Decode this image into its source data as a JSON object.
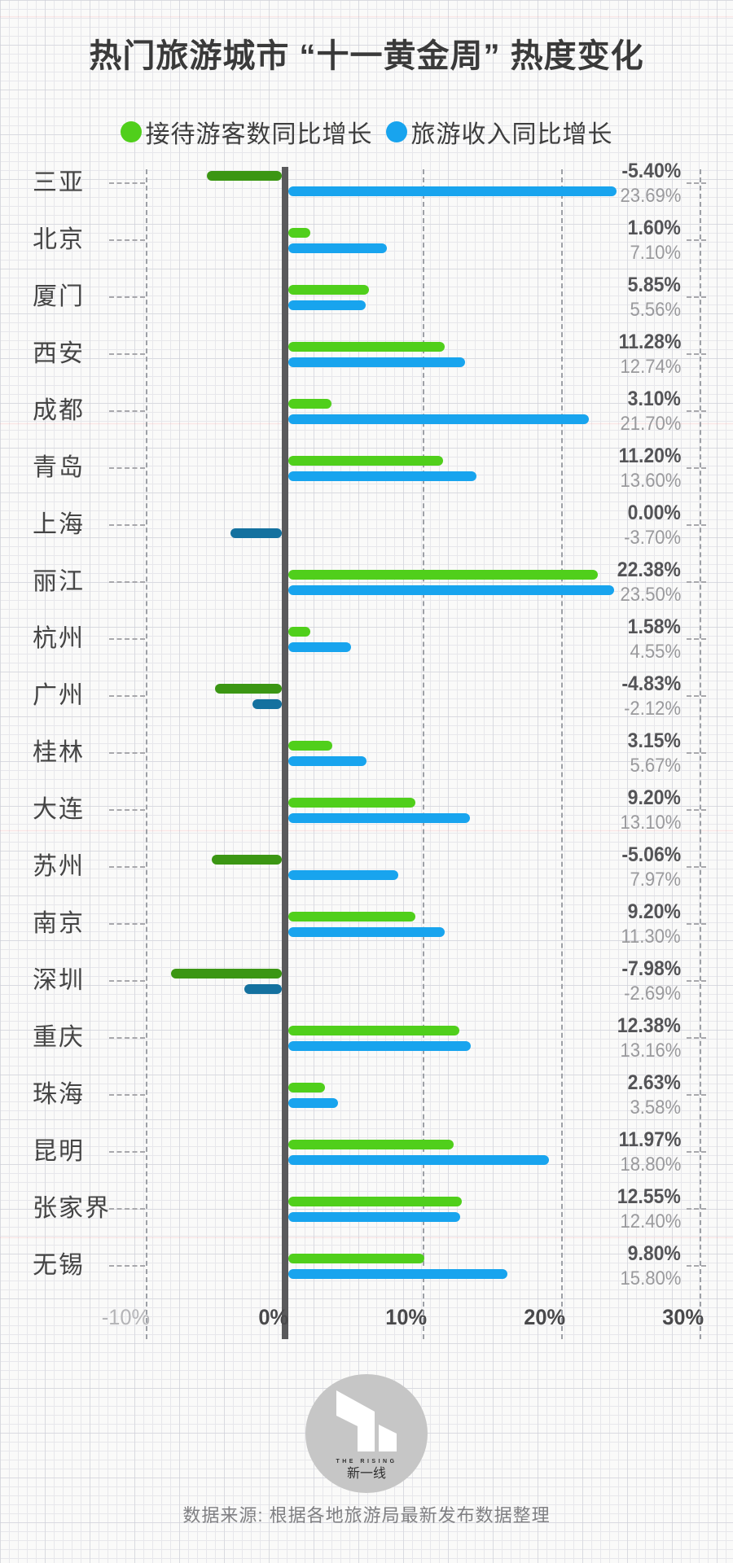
{
  "title": "热门旅游城市 “十一黄金周” 热度变化",
  "legend": [
    {
      "label": "接待游客数同比增长",
      "color": "#50cf1b"
    },
    {
      "label": "旅游收入同比增长",
      "color": "#18a4ee"
    }
  ],
  "chart_data": {
    "type": "bar",
    "orientation": "horizontal",
    "unit": "%",
    "xlim": [
      -10,
      30
    ],
    "grid": "dashed-vertical",
    "legend_position": "top-center",
    "x_ticks": [
      {
        "label": "-10%",
        "value": -10,
        "muted": true
      },
      {
        "label": "0%",
        "value": 0,
        "axis": true
      },
      {
        "label": "10%",
        "value": 10
      },
      {
        "label": "20%",
        "value": 20
      },
      {
        "label": "30%",
        "value": 30
      }
    ],
    "series_names": [
      "接待游客数同比增长",
      "旅游收入同比增长"
    ],
    "rows": [
      {
        "city": "三亚",
        "visitors": -5.4,
        "visitors_label": "-5.40%",
        "revenue": 23.69,
        "revenue_label": "23.69%"
      },
      {
        "city": "北京",
        "visitors": 1.6,
        "visitors_label": "1.60%",
        "revenue": 7.1,
        "revenue_label": "7.10%"
      },
      {
        "city": "厦门",
        "visitors": 5.85,
        "visitors_label": "5.85%",
        "revenue": 5.56,
        "revenue_label": "5.56%"
      },
      {
        "city": "西安",
        "visitors": 11.28,
        "visitors_label": "11.28%",
        "revenue": 12.74,
        "revenue_label": "12.74%"
      },
      {
        "city": "成都",
        "visitors": 3.1,
        "visitors_label": "3.10%",
        "revenue": 21.7,
        "revenue_label": "21.70%"
      },
      {
        "city": "青岛",
        "visitors": 11.2,
        "visitors_label": "11.20%",
        "revenue": 13.6,
        "revenue_label": "13.60%"
      },
      {
        "city": "上海",
        "visitors": 0.0,
        "visitors_label": "0.00%",
        "revenue": -3.7,
        "revenue_label": "-3.70%"
      },
      {
        "city": "丽江",
        "visitors": 22.38,
        "visitors_label": "22.38%",
        "revenue": 23.5,
        "revenue_label": "23.50%"
      },
      {
        "city": "杭州",
        "visitors": 1.58,
        "visitors_label": "1.58%",
        "revenue": 4.55,
        "revenue_label": "4.55%"
      },
      {
        "city": "广州",
        "visitors": -4.83,
        "visitors_label": "-4.83%",
        "revenue": -2.12,
        "revenue_label": "-2.12%"
      },
      {
        "city": "桂林",
        "visitors": 3.15,
        "visitors_label": "3.15%",
        "revenue": 5.67,
        "revenue_label": "5.67%"
      },
      {
        "city": "大连",
        "visitors": 9.2,
        "visitors_label": "9.20%",
        "revenue": 13.1,
        "revenue_label": "13.10%"
      },
      {
        "city": "苏州",
        "visitors": -5.06,
        "visitors_label": "-5.06%",
        "revenue": 7.97,
        "revenue_label": "7.97%"
      },
      {
        "city": "南京",
        "visitors": 9.2,
        "visitors_label": "9.20%",
        "revenue": 11.3,
        "revenue_label": "11.30%"
      },
      {
        "city": "深圳",
        "visitors": -7.98,
        "visitors_label": "-7.98%",
        "revenue": -2.69,
        "revenue_label": "-2.69%"
      },
      {
        "city": "重庆",
        "visitors": 12.38,
        "visitors_label": "12.38%",
        "revenue": 13.16,
        "revenue_label": "13.16%"
      },
      {
        "city": "珠海",
        "visitors": 2.63,
        "visitors_label": "2.63%",
        "revenue": 3.58,
        "revenue_label": "3.58%"
      },
      {
        "city": "昆明",
        "visitors": 11.97,
        "visitors_label": "11.97%",
        "revenue": 18.8,
        "revenue_label": "18.80%"
      },
      {
        "city": "张家界",
        "visitors": 12.55,
        "visitors_label": "12.55%",
        "revenue": 12.4,
        "revenue_label": "12.40%"
      },
      {
        "city": "无锡",
        "visitors": 9.8,
        "visitors_label": "9.80%",
        "revenue": 15.8,
        "revenue_label": "15.80%"
      }
    ]
  },
  "colors": {
    "visitors_positive": "#50cf1b",
    "visitors_negative": "#3b9613",
    "revenue_positive": "#18a4ee",
    "revenue_negative": "#14719f",
    "axis": "#5a5a5c",
    "value_primary": "#545457",
    "value_secondary": "#9a9a9d"
  },
  "footer": {
    "logo_name": "THE RISING",
    "logo_cn": "新一线",
    "source": "数据来源: 根据各地旅游局最新发布数据整理"
  }
}
